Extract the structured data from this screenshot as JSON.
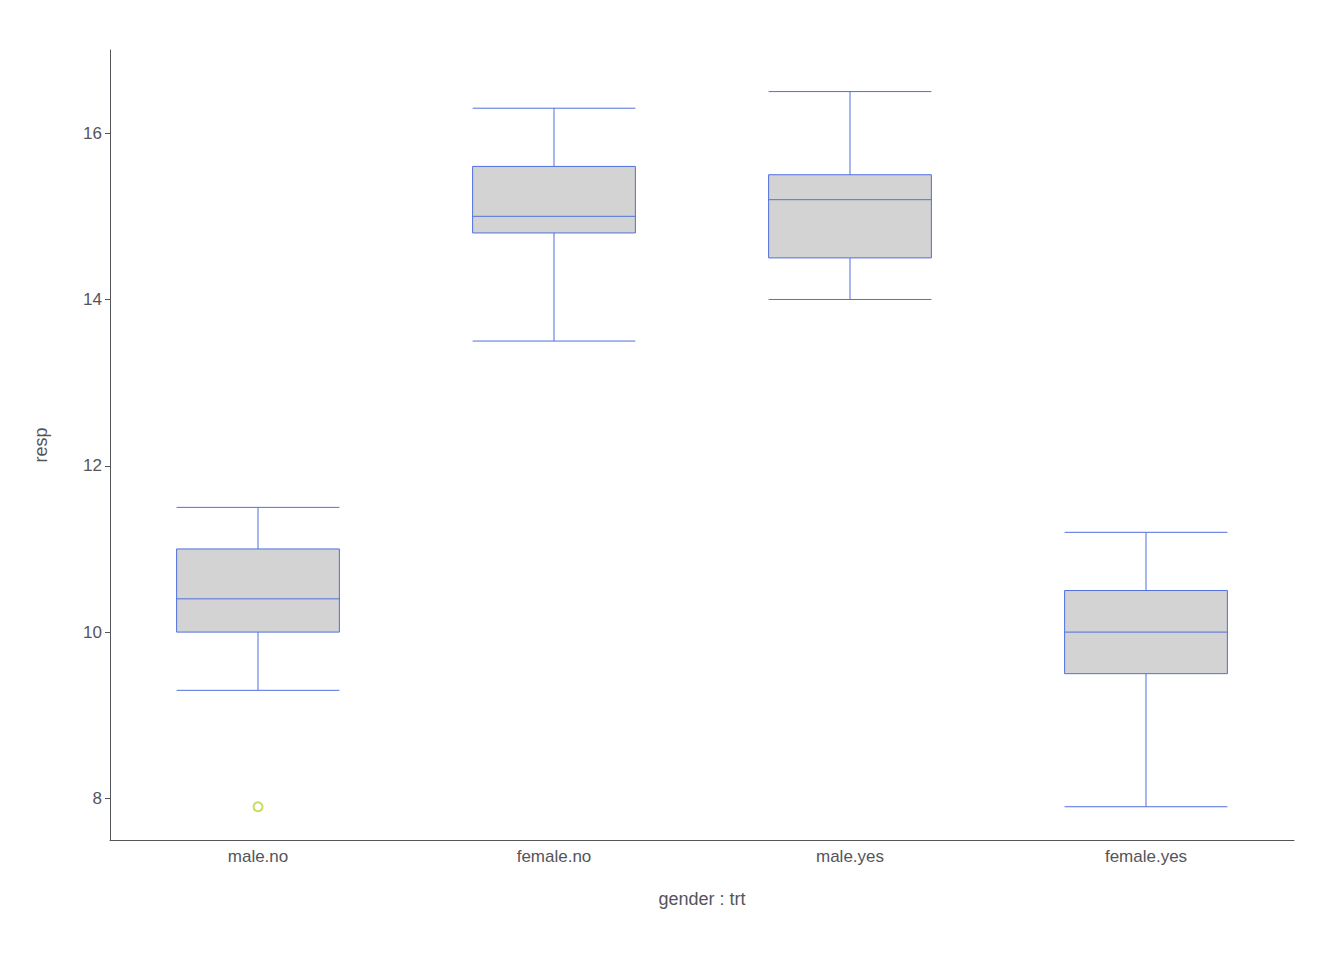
{
  "chart_data": {
    "type": "boxplot",
    "xlabel": "gender : trt",
    "ylabel": "resp",
    "categories": [
      "male.no",
      "female.no",
      "male.yes",
      "female.yes"
    ],
    "boxes": [
      {
        "low": 9.3,
        "q1": 10.0,
        "median": 10.4,
        "q3": 11.0,
        "high": 11.5,
        "outliers": [
          7.9
        ]
      },
      {
        "low": 13.5,
        "q1": 14.8,
        "median": 15.0,
        "q3": 15.6,
        "high": 16.3,
        "outliers": []
      },
      {
        "low": 14.0,
        "q1": 14.5,
        "median": 15.2,
        "q3": 15.5,
        "high": 16.5,
        "outliers": []
      },
      {
        "low": 7.9,
        "q1": 9.5,
        "median": 10.0,
        "q3": 10.5,
        "high": 11.2,
        "outliers": []
      }
    ],
    "color": "#d3d3d3",
    "ylim": [
      7.5,
      17.0
    ],
    "yticks": [
      8,
      10,
      12,
      14,
      16
    ],
    "grid": false
  }
}
